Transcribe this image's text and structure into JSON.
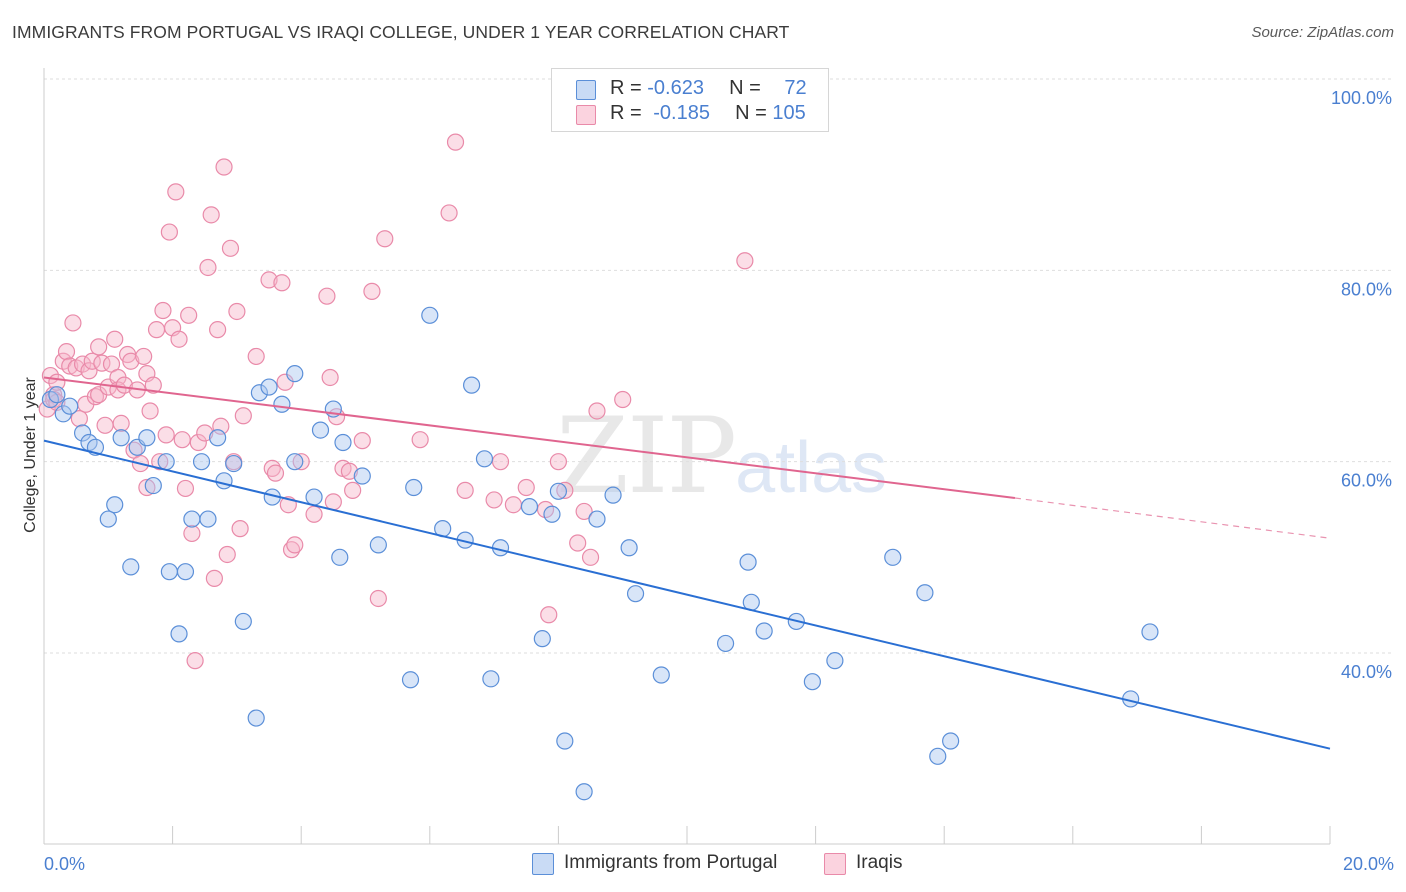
{
  "header": {
    "title": "IMMIGRANTS FROM PORTUGAL VS IRAQI COLLEGE, UNDER 1 YEAR CORRELATION CHART",
    "source": "Source: ZipAtlas.com"
  },
  "watermark": {
    "zip": "ZIP",
    "atlas": "atlas"
  },
  "legend": {
    "rows": [
      {
        "r_label": "R = ",
        "r_value": "-0.623",
        "n_label": "N = ",
        "n_value": "72"
      },
      {
        "r_label": "R = ",
        "r_value": "-0.185",
        "n_label": "N = ",
        "n_value": "105"
      }
    ]
  },
  "bottom_legend": {
    "portugal": "Immigrants from Portugal",
    "iraqis": "Iraqis"
  },
  "colors": {
    "portugal_fill": "#a9c6ef",
    "portugal_stroke": "#5b8fd8",
    "portugal_line": "#2a6fd3",
    "iraqi_fill": "#f6b6ca",
    "iraqi_stroke": "#e98aa9",
    "iraqi_line": "#e0658f",
    "tick_text": "#4a7fd0",
    "grid": "#dedede"
  },
  "chart_data": {
    "type": "scatter",
    "title": "IMMIGRANTS FROM PORTUGAL VS IRAQI COLLEGE, UNDER 1 YEAR CORRELATION CHART",
    "xlabel": "",
    "ylabel": "College, Under 1 year",
    "xlim": [
      0,
      20
    ],
    "ylim": [
      20,
      104
    ],
    "x_ticks": [
      "0.0%",
      "20.0%"
    ],
    "y_ticks": [
      {
        "value": 100,
        "label": "100.0%"
      },
      {
        "value": 80,
        "label": "80.0%"
      },
      {
        "value": 60,
        "label": "60.0%"
      },
      {
        "value": 40,
        "label": "40.0%"
      }
    ],
    "grid": true,
    "legend_position": "top-center",
    "series": [
      {
        "name": "Immigrants from Portugal",
        "R": -0.623,
        "N": 72,
        "trend": {
          "x": [
            0,
            20
          ],
          "y": [
            62.2,
            30.0
          ]
        },
        "points": [
          [
            0.1,
            66.5
          ],
          [
            0.2,
            67.0
          ],
          [
            0.3,
            65.0
          ],
          [
            0.4,
            65.8
          ],
          [
            0.6,
            63.0
          ],
          [
            0.7,
            62.0
          ],
          [
            0.8,
            61.5
          ],
          [
            1.0,
            54.0
          ],
          [
            1.1,
            55.5
          ],
          [
            1.2,
            62.5
          ],
          [
            1.35,
            49.0
          ],
          [
            1.45,
            61.5
          ],
          [
            1.6,
            62.5
          ],
          [
            1.7,
            57.5
          ],
          [
            1.9,
            60.0
          ],
          [
            1.95,
            48.5
          ],
          [
            2.1,
            42.0
          ],
          [
            2.2,
            48.5
          ],
          [
            2.3,
            54.0
          ],
          [
            2.45,
            60.0
          ],
          [
            2.55,
            54.0
          ],
          [
            2.7,
            62.5
          ],
          [
            2.8,
            58.0
          ],
          [
            2.95,
            59.8
          ],
          [
            3.1,
            43.3
          ],
          [
            3.3,
            33.2
          ],
          [
            3.35,
            67.2
          ],
          [
            3.5,
            67.8
          ],
          [
            3.55,
            56.3
          ],
          [
            3.7,
            66.0
          ],
          [
            3.9,
            69.2
          ],
          [
            3.9,
            60.0
          ],
          [
            4.2,
            56.3
          ],
          [
            4.3,
            63.3
          ],
          [
            4.5,
            65.5
          ],
          [
            4.6,
            50.0
          ],
          [
            4.65,
            62.0
          ],
          [
            4.95,
            58.5
          ],
          [
            5.2,
            51.3
          ],
          [
            5.7,
            37.2
          ],
          [
            5.75,
            57.3
          ],
          [
            6.0,
            75.3
          ],
          [
            6.2,
            53.0
          ],
          [
            6.55,
            51.8
          ],
          [
            6.65,
            68.0
          ],
          [
            6.85,
            60.3
          ],
          [
            6.95,
            37.3
          ],
          [
            7.1,
            51.0
          ],
          [
            7.55,
            55.3
          ],
          [
            7.75,
            41.5
          ],
          [
            7.9,
            54.5
          ],
          [
            8.0,
            56.9
          ],
          [
            8.1,
            30.8
          ],
          [
            8.4,
            25.5
          ],
          [
            8.6,
            54.0
          ],
          [
            8.85,
            56.5
          ],
          [
            9.1,
            51.0
          ],
          [
            9.2,
            46.2
          ],
          [
            9.6,
            37.7
          ],
          [
            10.6,
            41.0
          ],
          [
            10.95,
            49.5
          ],
          [
            11.0,
            45.3
          ],
          [
            11.2,
            42.3
          ],
          [
            11.7,
            43.3
          ],
          [
            11.95,
            37.0
          ],
          [
            12.3,
            39.2
          ],
          [
            13.2,
            50.0
          ],
          [
            13.7,
            46.3
          ],
          [
            13.9,
            29.2
          ],
          [
            14.1,
            30.8
          ],
          [
            16.9,
            35.2
          ],
          [
            17.2,
            42.2
          ]
        ]
      },
      {
        "name": "Iraqis",
        "R": -0.185,
        "N": 105,
        "trend": {
          "x": [
            0,
            15.1
          ],
          "y": [
            68.8,
            56.2
          ]
        },
        "trend_dashed": {
          "x": [
            15.1,
            20
          ],
          "y": [
            56.2,
            52.0
          ]
        },
        "points": [
          [
            0.05,
            65.5
          ],
          [
            0.1,
            69.0
          ],
          [
            0.15,
            67.0
          ],
          [
            0.15,
            66.5
          ],
          [
            0.2,
            68.3
          ],
          [
            0.2,
            66.2
          ],
          [
            0.3,
            70.5
          ],
          [
            0.35,
            71.5
          ],
          [
            0.4,
            70.0
          ],
          [
            0.45,
            74.5
          ],
          [
            0.5,
            69.8
          ],
          [
            0.55,
            64.5
          ],
          [
            0.6,
            70.2
          ],
          [
            0.65,
            66.0
          ],
          [
            0.7,
            69.5
          ],
          [
            0.75,
            70.5
          ],
          [
            0.8,
            66.8
          ],
          [
            0.85,
            67.0
          ],
          [
            0.85,
            72.0
          ],
          [
            0.9,
            70.3
          ],
          [
            0.95,
            63.8
          ],
          [
            1.0,
            67.8
          ],
          [
            1.05,
            70.2
          ],
          [
            1.1,
            72.8
          ],
          [
            1.15,
            68.8
          ],
          [
            1.15,
            67.5
          ],
          [
            1.2,
            64.0
          ],
          [
            1.25,
            68.0
          ],
          [
            1.3,
            71.2
          ],
          [
            1.35,
            70.5
          ],
          [
            1.4,
            61.2
          ],
          [
            1.45,
            67.5
          ],
          [
            1.5,
            59.8
          ],
          [
            1.55,
            71.0
          ],
          [
            1.6,
            57.3
          ],
          [
            1.6,
            69.2
          ],
          [
            1.65,
            65.3
          ],
          [
            1.7,
            68.0
          ],
          [
            1.75,
            73.8
          ],
          [
            1.8,
            60.0
          ],
          [
            1.85,
            75.8
          ],
          [
            1.9,
            62.8
          ],
          [
            1.95,
            84.0
          ],
          [
            2.0,
            74.0
          ],
          [
            2.05,
            88.2
          ],
          [
            2.1,
            72.8
          ],
          [
            2.15,
            62.3
          ],
          [
            2.2,
            57.2
          ],
          [
            2.25,
            75.3
          ],
          [
            2.3,
            52.5
          ],
          [
            2.35,
            39.2
          ],
          [
            2.4,
            62.0
          ],
          [
            2.5,
            63.0
          ],
          [
            2.55,
            80.3
          ],
          [
            2.6,
            85.8
          ],
          [
            2.65,
            47.8
          ],
          [
            2.7,
            73.8
          ],
          [
            2.75,
            63.7
          ],
          [
            2.8,
            90.8
          ],
          [
            2.85,
            50.3
          ],
          [
            2.9,
            82.3
          ],
          [
            2.95,
            60.0
          ],
          [
            3.0,
            75.7
          ],
          [
            3.05,
            53.0
          ],
          [
            3.1,
            64.8
          ],
          [
            3.3,
            71.0
          ],
          [
            3.5,
            79.0
          ],
          [
            3.55,
            59.3
          ],
          [
            3.6,
            58.8
          ],
          [
            3.7,
            78.7
          ],
          [
            3.75,
            68.3
          ],
          [
            3.8,
            55.5
          ],
          [
            3.85,
            50.8
          ],
          [
            3.9,
            51.3
          ],
          [
            4.0,
            60.0
          ],
          [
            4.2,
            54.5
          ],
          [
            4.4,
            77.3
          ],
          [
            4.45,
            68.8
          ],
          [
            4.5,
            55.8
          ],
          [
            4.55,
            64.7
          ],
          [
            4.65,
            59.3
          ],
          [
            4.75,
            59.0
          ],
          [
            4.8,
            57.0
          ],
          [
            4.95,
            62.2
          ],
          [
            5.1,
            77.8
          ],
          [
            5.2,
            45.7
          ],
          [
            5.3,
            83.3
          ],
          [
            5.85,
            62.3
          ],
          [
            6.3,
            86.0
          ],
          [
            6.4,
            93.4
          ],
          [
            6.55,
            57.0
          ],
          [
            7.0,
            56.0
          ],
          [
            7.1,
            60.0
          ],
          [
            7.3,
            55.5
          ],
          [
            7.5,
            57.3
          ],
          [
            7.8,
            55.0
          ],
          [
            7.85,
            44.0
          ],
          [
            8.0,
            60.0
          ],
          [
            8.1,
            57.0
          ],
          [
            8.3,
            51.5
          ],
          [
            8.4,
            54.8
          ],
          [
            8.5,
            50.0
          ],
          [
            8.6,
            65.3
          ],
          [
            10.9,
            81.0
          ],
          [
            9.0,
            66.5
          ]
        ]
      }
    ]
  }
}
